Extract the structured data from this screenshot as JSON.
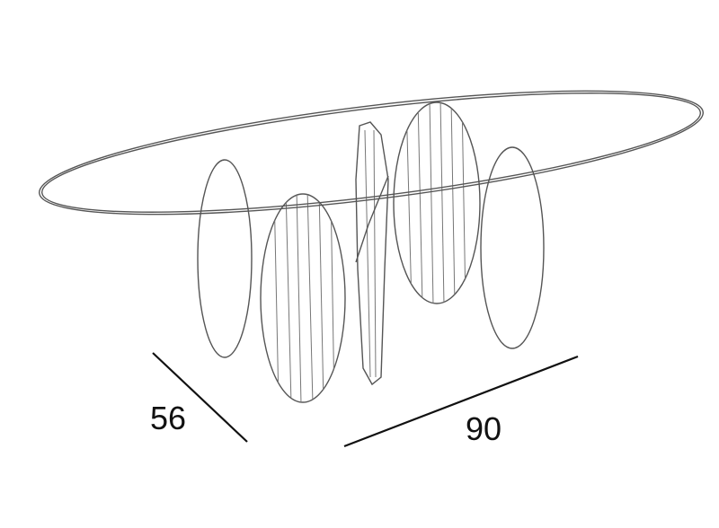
{
  "dimensions": {
    "depth": 56,
    "width": 90
  }
}
